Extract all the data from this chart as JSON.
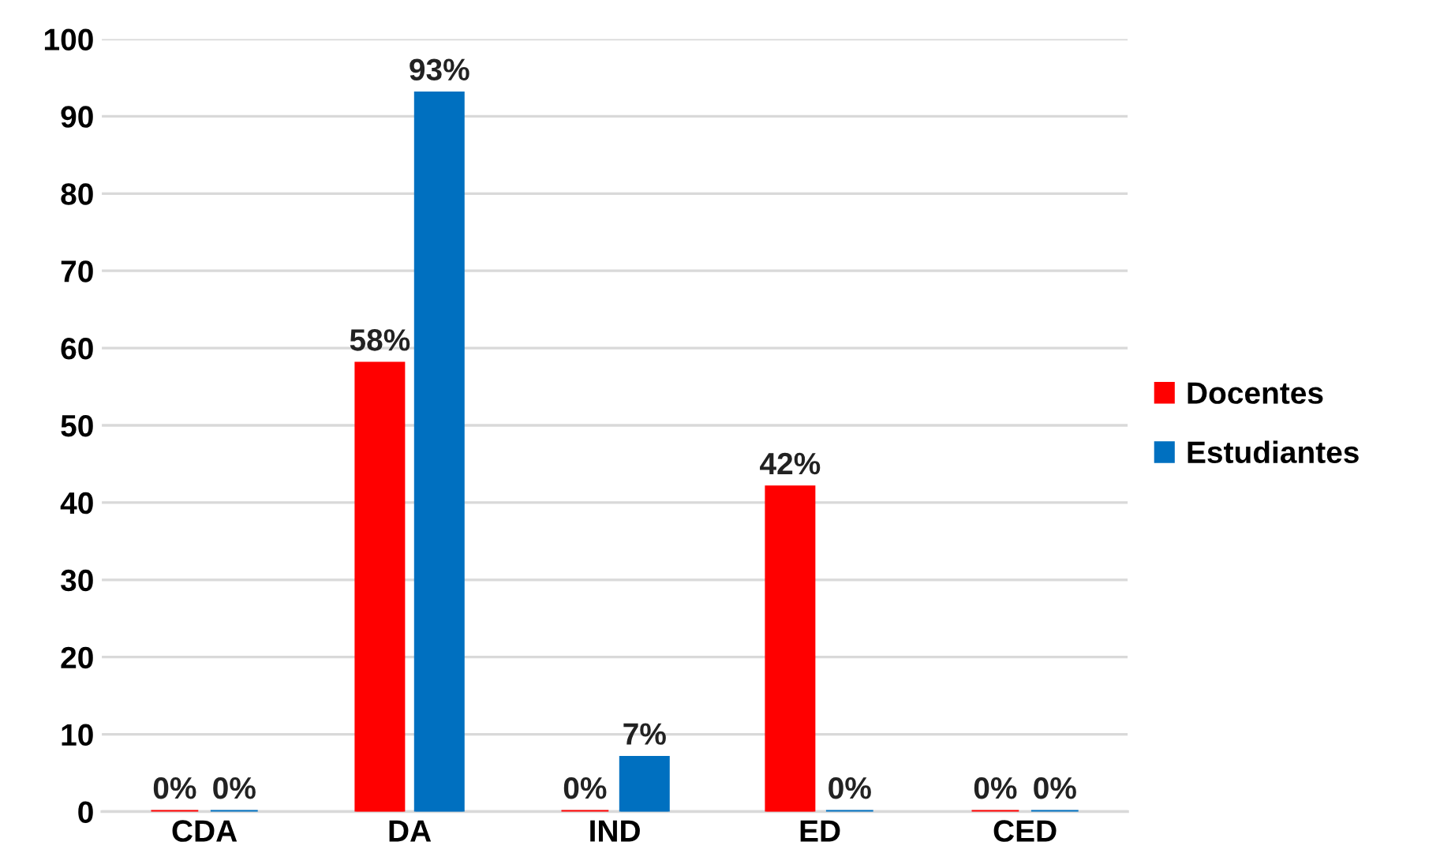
{
  "chart_data": {
    "type": "bar",
    "categories": [
      "CDA",
      "DA",
      "IND",
      "ED",
      "CED"
    ],
    "series": [
      {
        "name": "Docentes",
        "color": "#ff0000",
        "values": [
          0,
          58,
          0,
          42,
          0
        ],
        "value_labels": [
          "0%",
          "58%",
          "0%",
          "42%",
          "0%"
        ]
      },
      {
        "name": "Estudiantes",
        "color": "#0070c0",
        "values": [
          0,
          93,
          7,
          0,
          0
        ],
        "value_labels": [
          "0%",
          "93%",
          "7%",
          "0%",
          "0%"
        ]
      }
    ],
    "ylim": [
      0,
      100
    ],
    "yticks": [
      0,
      10,
      20,
      30,
      40,
      50,
      60,
      70,
      80,
      90,
      100
    ],
    "grid": "y",
    "legend": "right"
  }
}
